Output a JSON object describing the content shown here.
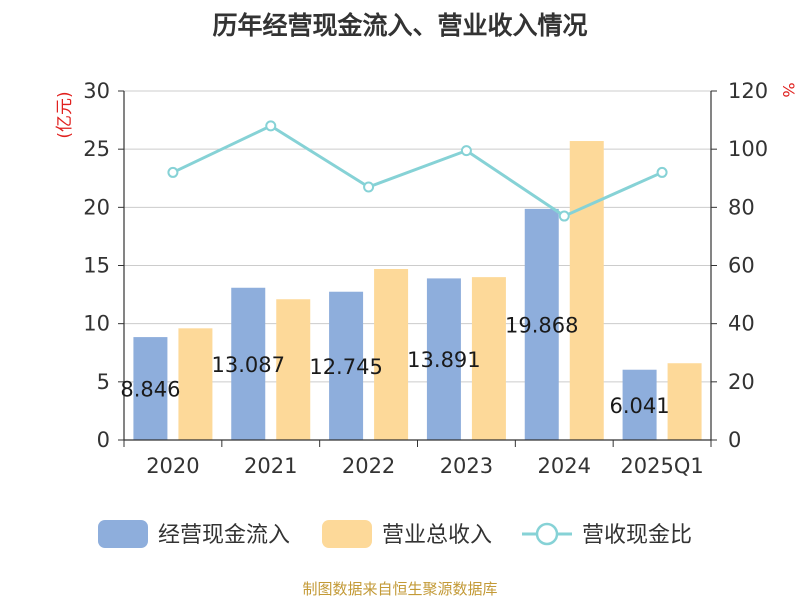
{
  "chart_data": {
    "type": "bar",
    "title": "历年经营现金流入、营业收入情况",
    "categories": [
      "2020",
      "2021",
      "2022",
      "2023",
      "2024",
      "2025Q1"
    ],
    "y_left": {
      "unit": "(亿元)",
      "ylim": [
        0,
        30
      ],
      "ticks": [
        "0",
        "5",
        "10",
        "15",
        "20",
        "25",
        "30"
      ]
    },
    "y_right": {
      "unit": "%",
      "ylim": [
        0,
        120
      ],
      "ticks": [
        "0",
        "20",
        "40",
        "60",
        "80",
        "100",
        "120"
      ]
    },
    "series": [
      {
        "name": "经营现金流入",
        "type": "bar",
        "axis": "left",
        "color": "#8eaedc",
        "values": [
          8.846,
          13.087,
          12.745,
          13.891,
          19.868,
          6.041
        ],
        "labels": [
          "8.846",
          "13.087",
          "12.745",
          "13.891",
          "19.868",
          "6.041"
        ]
      },
      {
        "name": "营业总收入",
        "type": "bar",
        "axis": "left",
        "color": "#fdd999",
        "values": [
          9.6,
          12.1,
          14.7,
          14.0,
          25.7,
          6.6
        ]
      },
      {
        "name": "营收现金比",
        "type": "line",
        "axis": "right",
        "color": "#86d2d6",
        "values": [
          92,
          108,
          87,
          99.5,
          77,
          92
        ]
      }
    ],
    "legend_position": "bottom",
    "grid": true
  },
  "source": "制图数据来自恒生聚源数据库"
}
